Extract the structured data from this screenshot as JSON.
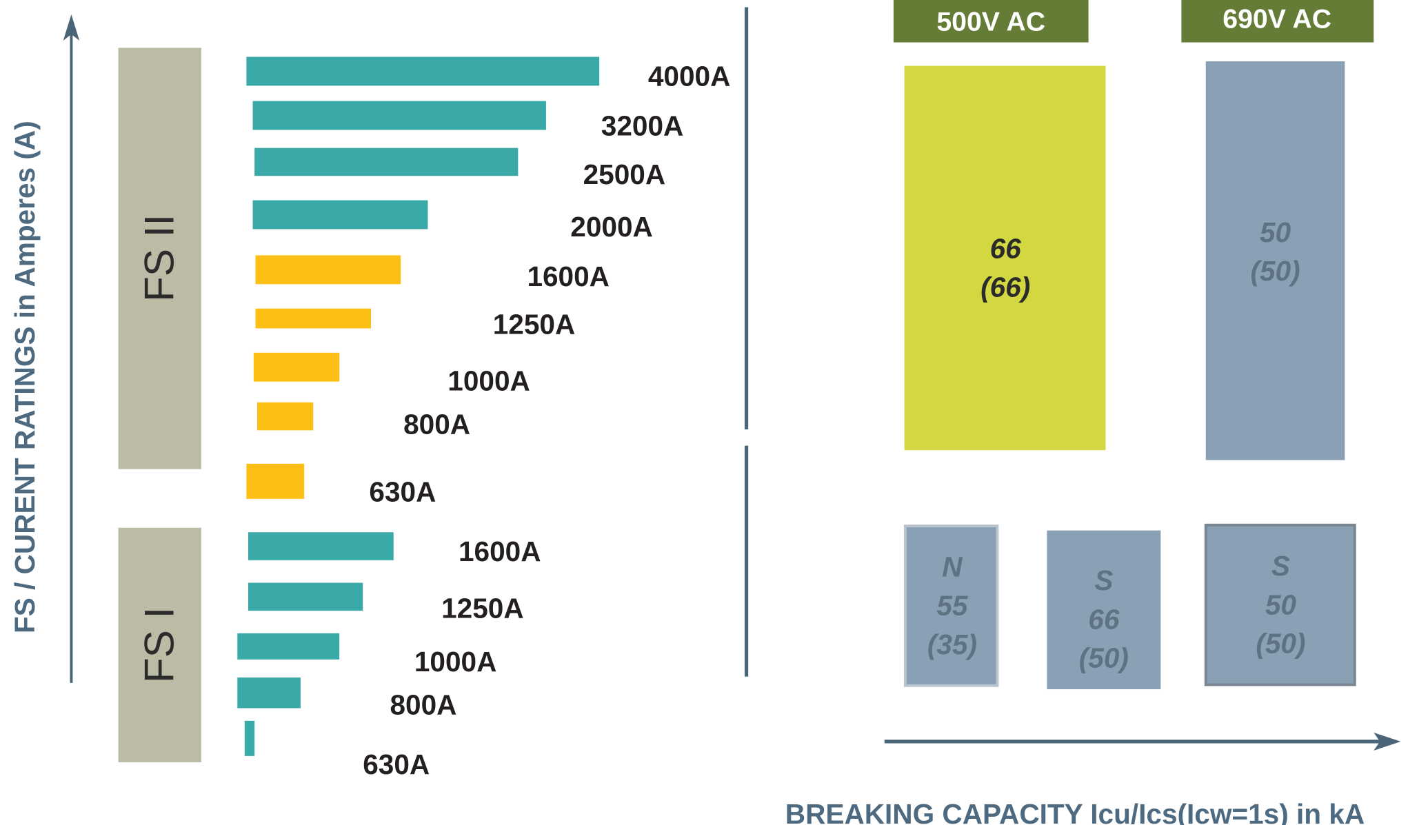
{
  "y_axis_label": "FS / CURENT RATINGS in Amperes (A)",
  "x_axis_label": "BREAKING CAPACITY Icu/Ics(Icw=1s) in kA",
  "frame_sizes": [
    {
      "label": "FS II",
      "ratings": [
        "4000A",
        "3200A",
        "2500A",
        "2000A",
        "1600A",
        "1250A",
        "1000A",
        "800A",
        "630A"
      ]
    },
    {
      "label": "FS I",
      "ratings": [
        "1600A",
        "1250A",
        "1000A",
        "800A",
        "630A"
      ]
    }
  ],
  "voltages": [
    "500V AC",
    "690V AC"
  ],
  "capacities": [
    {
      "lines": [
        "66",
        "(66)"
      ]
    },
    {
      "lines": [
        "50",
        "(50)"
      ]
    },
    {
      "lines": [
        "N",
        "55",
        "(35)"
      ]
    },
    {
      "lines": [
        "S",
        "66",
        "(50)"
      ]
    },
    {
      "lines": [
        "S",
        "50",
        "(50)"
      ]
    }
  ]
}
